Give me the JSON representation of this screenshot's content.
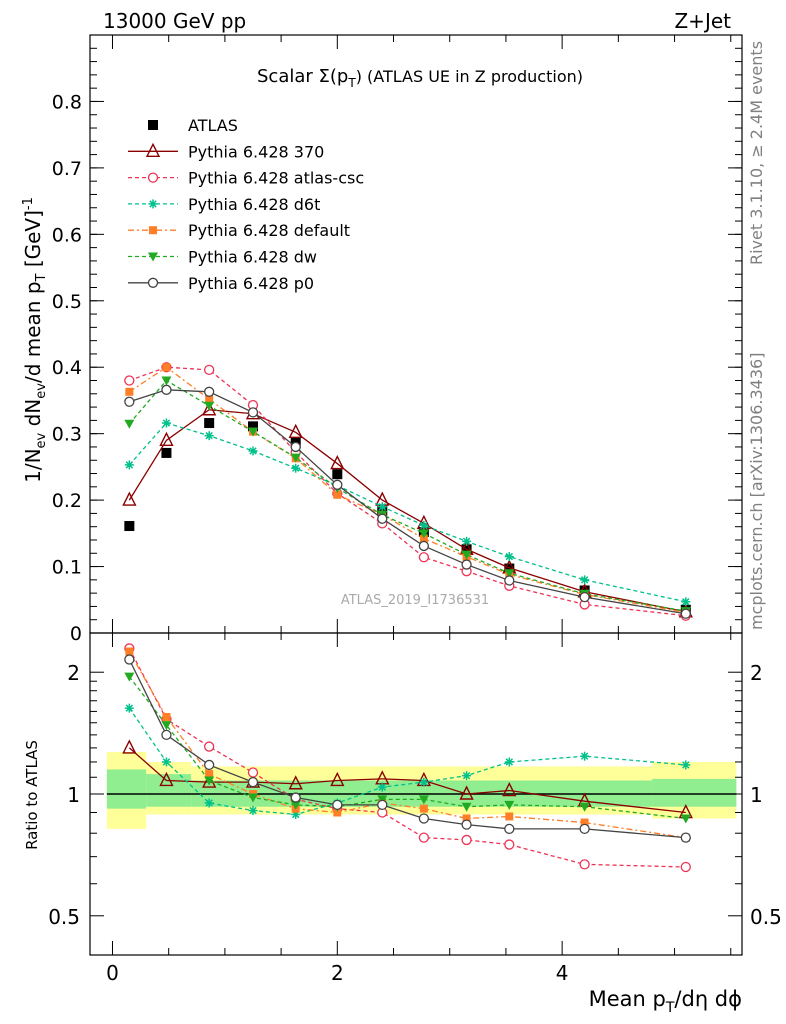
{
  "header": {
    "left": "13000 GeV pp",
    "right": "Z+Jet"
  },
  "side_labels": {
    "rivet": "Rivet 3.1.10, ≥ 2.4M events",
    "mcplots": "mcplots.cern.ch [arXiv:1306.3436]"
  },
  "chart_data": [
    {
      "type": "line",
      "title": "Scalar Σ(p_T) (ATLAS UE in Z production)",
      "title_parts": {
        "a": "Scalar ",
        "sigma": "Σ(p",
        "sub": "T",
        "b": ") (ATLAS UE in Z production)"
      },
      "ylabel": "1/N_ev dN_ev/d mean p_T [GeV]^-1",
      "ylabel_parts": {
        "a": "1/N",
        "ev1": "ev",
        "b": " dN",
        "ev2": "ev",
        "c": "/d mean p",
        "t": "T",
        "d": " [GeV]",
        "sup": "-1"
      },
      "ylim": [
        0,
        0.9
      ],
      "xlim": [
        -0.2,
        5.6
      ],
      "yticks": [
        "0",
        "0.1",
        "0.2",
        "0.3",
        "0.4",
        "0.5",
        "0.6",
        "0.7",
        "0.8"
      ],
      "watermark": "ATLAS_2019_I1736531",
      "x": [
        0.15,
        0.48,
        0.86,
        1.25,
        1.63,
        2.0,
        2.4,
        2.77,
        3.15,
        3.53,
        4.2,
        5.1
      ],
      "series": [
        {
          "name": "ATLAS",
          "color": "#000000",
          "marker": "square",
          "dash": "none",
          "values": [
            0.161,
            0.271,
            0.316,
            0.311,
            0.286,
            0.239,
            0.184,
            0.152,
            0.126,
            0.097,
            0.064,
            0.035
          ]
        },
        {
          "name": "Pythia 6.428 370",
          "color": "#8b0000",
          "marker": "triangle-open",
          "dash": "solid",
          "values": [
            0.2,
            0.29,
            0.336,
            0.33,
            0.302,
            0.255,
            0.2,
            0.165,
            0.126,
            0.098,
            0.062,
            0.032
          ]
        },
        {
          "name": "Pythia 6.428 atlas-csc",
          "color": "#ee3355",
          "marker": "circle-open",
          "dash": "4,3",
          "values": [
            0.38,
            0.4,
            0.396,
            0.343,
            0.272,
            0.21,
            0.165,
            0.114,
            0.093,
            0.071,
            0.043,
            0.026
          ]
        },
        {
          "name": "Pythia 6.428 d6t",
          "color": "#00c08b",
          "marker": "star",
          "dash": "4,3",
          "values": [
            0.253,
            0.316,
            0.297,
            0.274,
            0.248,
            0.222,
            0.19,
            0.162,
            0.138,
            0.115,
            0.08,
            0.047
          ]
        },
        {
          "name": "Pythia 6.428 default",
          "color": "#ff7f27",
          "marker": "square-small",
          "dash": "6,3,2,3",
          "values": [
            0.363,
            0.4,
            0.352,
            0.303,
            0.263,
            0.208,
            0.178,
            0.142,
            0.115,
            0.088,
            0.058,
            0.031
          ]
        },
        {
          "name": "Pythia 6.428 dw",
          "color": "#22aa22",
          "marker": "triangle-down",
          "dash": "4,3",
          "values": [
            0.315,
            0.38,
            0.342,
            0.303,
            0.264,
            0.218,
            0.178,
            0.15,
            0.118,
            0.09,
            0.059,
            0.033
          ]
        },
        {
          "name": "Pythia 6.428 p0",
          "color": "#444444",
          "marker": "circle-open",
          "dash": "solid",
          "values": [
            0.348,
            0.366,
            0.363,
            0.332,
            0.28,
            0.223,
            0.172,
            0.131,
            0.103,
            0.079,
            0.054,
            0.029
          ]
        }
      ]
    },
    {
      "type": "line",
      "ylabel": "Ratio to ATLAS",
      "xlabel": "Mean p_T/dη dϕ",
      "xlabel_parts": {
        "a": "Mean p",
        "t": "T",
        "b": "/dη dϕ"
      },
      "yscale": "log",
      "ylim": [
        0.4,
        2.5
      ],
      "yticks": [
        "0.5",
        "1",
        "2"
      ],
      "xticks": [
        "0",
        "2",
        "4"
      ],
      "bands": {
        "yellow": [
          [
            -0.05,
            0.3,
            0.82,
            1.27
          ],
          [
            0.3,
            0.7,
            0.89,
            1.2
          ],
          [
            0.7,
            4.8,
            0.89,
            1.17
          ],
          [
            4.8,
            5.55,
            0.87,
            1.2
          ]
        ],
        "green": [
          [
            -0.05,
            0.3,
            0.92,
            1.15
          ],
          [
            0.3,
            0.7,
            0.93,
            1.12
          ],
          [
            0.7,
            4.8,
            0.93,
            1.08
          ],
          [
            4.8,
            5.55,
            0.93,
            1.09
          ]
        ]
      },
      "series": [
        {
          "name": "Pythia 6.428 370",
          "values": [
            1.3,
            1.08,
            1.07,
            1.07,
            1.06,
            1.08,
            1.09,
            1.08,
            1.0,
            1.02,
            0.96,
            0.9
          ]
        },
        {
          "name": "Pythia 6.428 atlas-csc",
          "values": [
            2.29,
            1.53,
            1.31,
            1.13,
            0.97,
            0.92,
            0.9,
            0.78,
            0.77,
            0.75,
            0.67,
            0.66
          ]
        },
        {
          "name": "Pythia 6.428 d6t",
          "values": [
            1.63,
            1.2,
            0.95,
            0.91,
            0.89,
            0.95,
            1.04,
            1.07,
            1.11,
            1.2,
            1.24,
            1.18
          ]
        },
        {
          "name": "Pythia 6.428 default",
          "values": [
            2.25,
            1.55,
            1.12,
            1.0,
            0.92,
            0.9,
            0.95,
            0.92,
            0.87,
            0.88,
            0.85,
            0.78
          ]
        },
        {
          "name": "Pythia 6.428 dw",
          "values": [
            1.95,
            1.48,
            1.08,
            0.98,
            0.94,
            0.93,
            0.97,
            0.97,
            0.93,
            0.94,
            0.93,
            0.87
          ]
        },
        {
          "name": "Pythia 6.428 p0",
          "values": [
            2.15,
            1.4,
            1.18,
            1.07,
            0.98,
            0.94,
            0.94,
            0.87,
            0.84,
            0.82,
            0.82,
            0.78
          ]
        }
      ]
    }
  ]
}
